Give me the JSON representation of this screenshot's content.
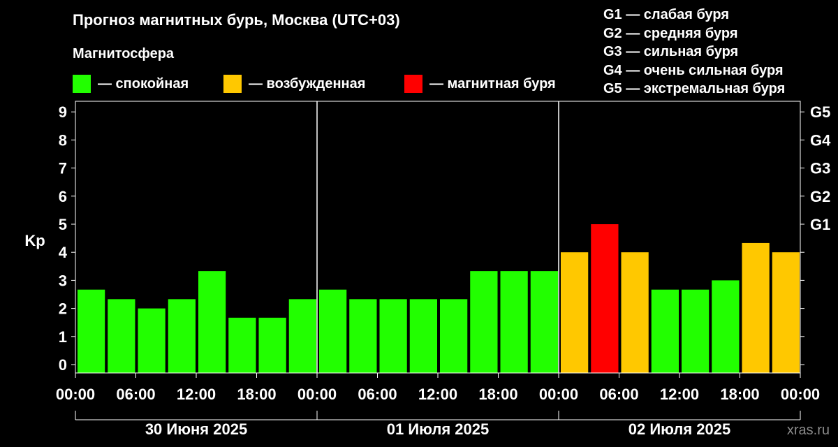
{
  "header": {
    "title": "Прогноз магнитных бурь, Москва (UTC+03)",
    "subtitle": "Магнитосфера"
  },
  "legend": [
    {
      "label": "— спокойная",
      "color": "#22ff00"
    },
    {
      "label": "— возбужденная",
      "color": "#ffc800"
    },
    {
      "label": "— магнитная буря",
      "color": "#ff0000"
    }
  ],
  "g_legend": [
    "G1 — слабая буря",
    "G2 — средняя буря",
    "G3 — сильная буря",
    "G4 — очень сильная буря",
    "G5 — экстремальная буря"
  ],
  "watermark": "xras.ru",
  "chart_data": {
    "type": "bar",
    "ylabel": "Kp",
    "ylim": [
      0,
      9
    ],
    "yticks": [
      "0",
      "1",
      "2",
      "3",
      "4",
      "5",
      "6",
      "7",
      "8",
      "9"
    ],
    "right_ticks": [
      {
        "value": 5,
        "label": "G1"
      },
      {
        "value": 6,
        "label": "G2"
      },
      {
        "value": 7,
        "label": "G3"
      },
      {
        "value": 8,
        "label": "G4"
      },
      {
        "value": 9,
        "label": "G5"
      }
    ],
    "xticks": [
      "00:00",
      "06:00",
      "12:00",
      "18:00",
      "00:00",
      "06:00",
      "12:00",
      "18:00",
      "00:00",
      "06:00",
      "12:00",
      "18:00",
      "00:00"
    ],
    "days": [
      "30 Июня 2025",
      "01 Июля 2025",
      "02 Июля 2025"
    ],
    "values": [
      2.67,
      2.33,
      2.0,
      2.33,
      3.33,
      1.67,
      1.67,
      2.33,
      2.67,
      2.33,
      2.33,
      2.33,
      2.33,
      3.33,
      3.33,
      3.33,
      4.0,
      5.0,
      4.0,
      2.67,
      2.67,
      3.0,
      4.33,
      4.0
    ],
    "levels": [
      "quiet",
      "quiet",
      "quiet",
      "quiet",
      "quiet",
      "quiet",
      "quiet",
      "quiet",
      "quiet",
      "quiet",
      "quiet",
      "quiet",
      "quiet",
      "quiet",
      "quiet",
      "quiet",
      "active",
      "storm",
      "active",
      "quiet",
      "quiet",
      "quiet",
      "active",
      "active"
    ],
    "level_colors": {
      "quiet": "#22ff00",
      "active": "#ffc800",
      "storm": "#ff0000"
    },
    "grid": false
  }
}
